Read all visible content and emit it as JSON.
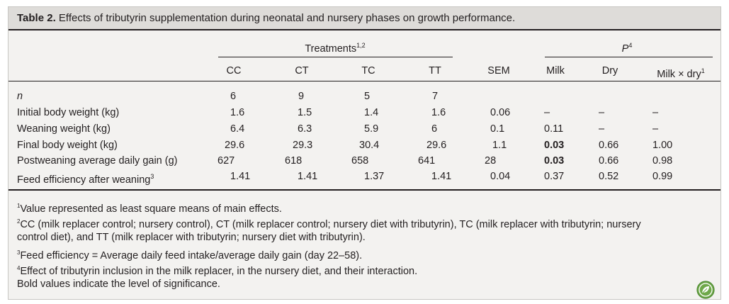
{
  "caption": {
    "label": "Table 2.",
    "text": " Effects of tributyrin supplementation during neonatal and nursery phases on growth performance."
  },
  "header": {
    "treatments": "Treatments",
    "treatments_sup": "1,2",
    "p": "P",
    "p_sup": "4",
    "columns": [
      "CC",
      "CT",
      "TC",
      "TT",
      "SEM",
      "Milk",
      "Dry",
      "Milk × dry"
    ],
    "milk_dry_sup": "1"
  },
  "rows": [
    {
      "label": "n",
      "cells": [
        "6",
        "9",
        "5",
        "7",
        "",
        "",
        "",
        ""
      ]
    },
    {
      "label": "Initial body weight (kg)",
      "cells": [
        "1.6",
        "1.5",
        "1.4",
        "1.6",
        "0.06",
        "–",
        "–",
        "–"
      ]
    },
    {
      "label": "Weaning weight (kg)",
      "cells": [
        "6.4",
        "6.3",
        "5.9",
        "6",
        "0.1",
        "0.11",
        "–",
        "–"
      ]
    },
    {
      "label": "Final body weight (kg)",
      "cells": [
        "29.6",
        "29.3",
        "30.4",
        "29.6",
        "1.1",
        "0.03",
        "0.66",
        "1.00"
      ]
    },
    {
      "label": "Postweaning average daily gain (g)",
      "cells": [
        "627",
        "618",
        "658",
        "641",
        "28",
        "0.03",
        "0.66",
        "0.98"
      ]
    },
    {
      "label": "Feed efficiency after weaning",
      "label_sup": "3",
      "cells": [
        "1.41",
        "1.41",
        "1.37",
        "1.41",
        "0.04",
        "0.37",
        "0.52",
        "0.99"
      ]
    }
  ],
  "footnotes": [
    {
      "sup": "1",
      "text": "Value represented as least square means of main effects."
    },
    {
      "sup": "2",
      "text": "CC (milk replacer control; nursery control), CT (milk replacer control; nursery diet with tributyrin), TC (milk replacer with tributyrin; nursery"
    },
    {
      "sup": "",
      "text": "control diet), and TT (milk replacer with tributyrin; nursery diet with tributyrin)."
    },
    {
      "sup": "3",
      "text": "Feed efficiency = Average daily feed intake/average daily gain (day 22–58)."
    },
    {
      "sup": "4",
      "text": "Effect of tributyrin inclusion in the milk replacer, in the nursery diet, and their interaction."
    },
    {
      "sup": "",
      "text": "Bold values indicate the level of significance."
    }
  ],
  "colors": {
    "caption_bg": "#dedcd9",
    "body_bg": "#f3f2f0",
    "logo_green": "#6fa84a"
  },
  "logo_icon": "leaf-badge-icon"
}
